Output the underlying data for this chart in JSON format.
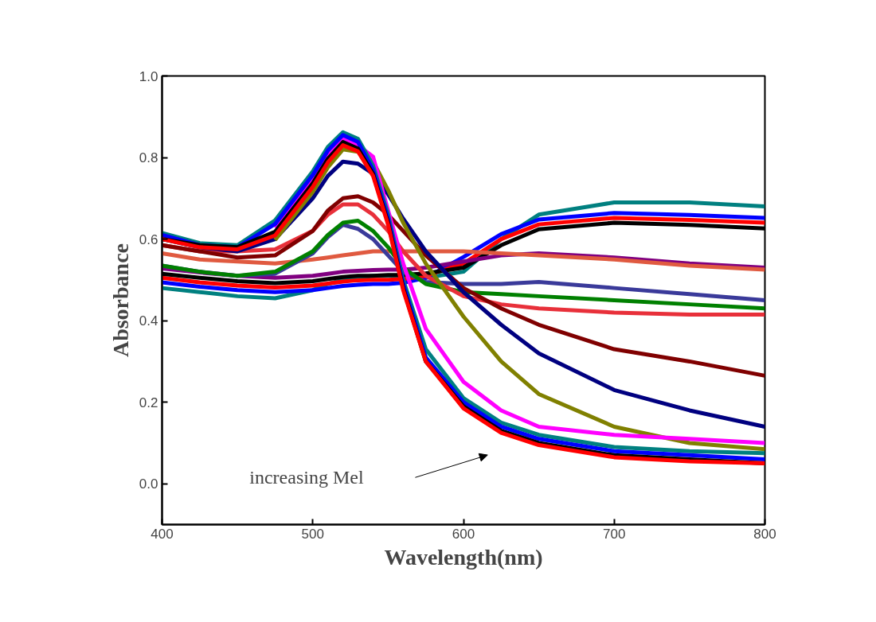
{
  "chart_data": {
    "type": "line",
    "xlabel": "Wavelength(nm)",
    "ylabel": "Absorbance",
    "xlim": [
      400,
      800
    ],
    "ylim": [
      -0.1,
      1.0
    ],
    "xticks": [
      400,
      500,
      600,
      700,
      800
    ],
    "yticks": [
      {
        "value": 0,
        "label": "0.0"
      },
      {
        "value": 0.2,
        "label": "0.2"
      },
      {
        "value": 0.4,
        "label": "0.4"
      },
      {
        "value": 0.6,
        "label": "0.6"
      },
      {
        "value": 0.8,
        "label": "0.8"
      },
      {
        "value": 1.0,
        "label": "1.0"
      }
    ],
    "grid": false,
    "marker": "none",
    "line_style": "solid",
    "annotations": [
      "increasing Mel"
    ],
    "x": [
      400,
      425,
      450,
      475,
      500,
      510,
      520,
      530,
      540,
      550,
      560,
      575,
      600,
      625,
      650,
      700,
      750,
      800
    ],
    "series": [
      {
        "color": "#008080",
        "values": [
          0.48,
          0.47,
          0.46,
          0.455,
          0.475,
          0.49,
          0.5,
          0.505,
          0.51,
          0.51,
          0.51,
          0.505,
          0.52,
          0.6,
          0.66,
          0.69,
          0.69,
          0.68
        ]
      },
      {
        "color": "#0000ff",
        "values": [
          0.494,
          0.483,
          0.475,
          0.47,
          0.475,
          0.48,
          0.485,
          0.488,
          0.49,
          0.49,
          0.493,
          0.505,
          0.556,
          0.612,
          0.648,
          0.664,
          0.659,
          0.652
        ]
      },
      {
        "color": "#ff0000",
        "values": [
          0.505,
          0.494,
          0.486,
          0.481,
          0.486,
          0.491,
          0.496,
          0.499,
          0.5,
          0.5,
          0.502,
          0.51,
          0.54,
          0.6,
          0.636,
          0.652,
          0.647,
          0.64
        ]
      },
      {
        "color": "#000000",
        "values": [
          0.515,
          0.505,
          0.497,
          0.492,
          0.497,
          0.502,
          0.507,
          0.51,
          0.51,
          0.512,
          0.512,
          0.516,
          0.53,
          0.585,
          0.624,
          0.64,
          0.635,
          0.626
        ]
      },
      {
        "color": "#800080",
        "values": [
          0.528,
          0.518,
          0.51,
          0.505,
          0.51,
          0.515,
          0.52,
          0.522,
          0.524,
          0.525,
          0.525,
          0.53,
          0.545,
          0.56,
          0.565,
          0.555,
          0.54,
          0.53
        ]
      },
      {
        "color": "#e05a40",
        "values": [
          0.565,
          0.55,
          0.545,
          0.54,
          0.55,
          0.555,
          0.56,
          0.565,
          0.57,
          0.57,
          0.57,
          0.57,
          0.57,
          0.565,
          0.56,
          0.55,
          0.535,
          0.525
        ]
      },
      {
        "color": "#3a3a9a",
        "values": [
          0.535,
          0.52,
          0.51,
          0.515,
          0.565,
          0.605,
          0.635,
          0.625,
          0.6,
          0.56,
          0.52,
          0.495,
          0.49,
          0.49,
          0.495,
          0.48,
          0.465,
          0.45
        ]
      },
      {
        "color": "#008000",
        "values": [
          0.535,
          0.52,
          0.51,
          0.52,
          0.57,
          0.61,
          0.64,
          0.645,
          0.62,
          0.58,
          0.53,
          0.49,
          0.47,
          0.465,
          0.46,
          0.45,
          0.44,
          0.43
        ]
      },
      {
        "color": "#e8303a",
        "values": [
          0.585,
          0.57,
          0.57,
          0.575,
          0.62,
          0.66,
          0.685,
          0.685,
          0.66,
          0.62,
          0.57,
          0.51,
          0.46,
          0.44,
          0.43,
          0.42,
          0.415,
          0.415
        ]
      },
      {
        "color": "#800000",
        "values": [
          0.585,
          0.57,
          0.555,
          0.56,
          0.62,
          0.67,
          0.7,
          0.705,
          0.69,
          0.66,
          0.62,
          0.56,
          0.48,
          0.43,
          0.39,
          0.33,
          0.3,
          0.265
        ]
      },
      {
        "color": "#000080",
        "values": [
          0.6,
          0.58,
          0.57,
          0.6,
          0.7,
          0.755,
          0.79,
          0.785,
          0.76,
          0.71,
          0.65,
          0.57,
          0.47,
          0.39,
          0.32,
          0.23,
          0.18,
          0.14
        ]
      },
      {
        "color": "#808000",
        "values": [
          null,
          null,
          null,
          0.598,
          0.716,
          0.776,
          0.82,
          0.814,
          0.79,
          0.72,
          0.64,
          0.54,
          0.41,
          0.3,
          0.22,
          0.14,
          0.1,
          0.085
        ]
      },
      {
        "color": "#ff00ff",
        "values": [
          null,
          null,
          null,
          0.628,
          0.748,
          0.808,
          0.846,
          0.83,
          0.802,
          0.67,
          0.54,
          0.38,
          0.25,
          0.18,
          0.14,
          0.12,
          0.11,
          0.1
        ]
      },
      {
        "color": "#008080",
        "values": [
          0.615,
          0.59,
          0.585,
          0.646,
          0.766,
          0.826,
          0.862,
          0.846,
          0.78,
          0.66,
          0.5,
          0.33,
          0.21,
          0.15,
          0.12,
          0.09,
          0.08,
          0.075
        ]
      },
      {
        "color": "#0000ff",
        "values": [
          0.61,
          0.585,
          0.58,
          0.637,
          0.757,
          0.817,
          0.855,
          0.838,
          0.77,
          0.65,
          0.49,
          0.31,
          0.2,
          0.14,
          0.11,
          0.08,
          0.07,
          0.06
        ]
      },
      {
        "color": "#000000",
        "values": [
          0.6,
          0.585,
          0.58,
          0.618,
          0.737,
          0.797,
          0.838,
          0.822,
          0.76,
          0.64,
          0.48,
          0.3,
          0.19,
          0.13,
          0.1,
          0.07,
          0.06,
          0.05
        ]
      },
      {
        "color": "#ff0000",
        "values": [
          0.6,
          0.58,
          0.575,
          0.609,
          0.728,
          0.788,
          0.83,
          0.815,
          0.755,
          0.635,
          0.475,
          0.3,
          0.185,
          0.125,
          0.095,
          0.065,
          0.055,
          0.05
        ]
      }
    ]
  }
}
